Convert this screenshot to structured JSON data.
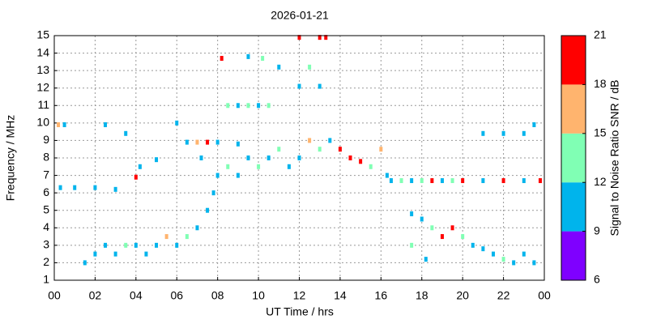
{
  "chart_data": {
    "type": "scatter",
    "title": "2026-01-21",
    "xlabel": "UT Time / hrs",
    "ylabel": "Frequency / MHz",
    "colorbar_label": "Signal to Noise Ratio SNR / dB",
    "xlim": [
      0,
      24
    ],
    "xticks": [
      {
        "value": 0,
        "label": "00"
      },
      {
        "value": 2,
        "label": "02"
      },
      {
        "value": 4,
        "label": "04"
      },
      {
        "value": 6,
        "label": "06"
      },
      {
        "value": 8,
        "label": "08"
      },
      10,
      12,
      14,
      16,
      18,
      20,
      22,
      {
        "value": 24,
        "label": "00"
      }
    ],
    "ylim": [
      1,
      15
    ],
    "yticks": [
      1,
      2,
      3,
      4,
      5,
      6,
      7,
      8,
      9,
      10,
      11,
      12,
      13,
      14,
      15
    ],
    "clim": [
      6,
      21
    ],
    "cticks": [
      6,
      9,
      12,
      15,
      18,
      21
    ],
    "colors": [
      "#7f00ff",
      "#00b4ec",
      "#80ffb4",
      "#ffb46e",
      "#ff0000"
    ],
    "grid": true,
    "x": [
      1.5,
      2,
      2.5,
      3,
      3.5,
      4,
      4.5,
      5,
      5.5,
      6,
      6.5,
      7,
      7.5,
      7.8,
      0.3,
      1,
      2,
      3,
      4,
      0.2,
      0.5,
      2.5,
      8,
      8.5,
      9,
      9.5,
      10,
      10.5,
      11,
      11.5,
      12,
      12.5,
      13,
      13.5,
      14,
      14.5,
      15,
      15.5,
      16,
      16.3,
      6.5,
      7,
      7.5,
      8,
      9,
      8.5,
      9,
      9.5,
      10,
      10.5,
      8.2,
      9.5,
      10.2,
      11,
      12,
      13,
      12.5,
      12,
      13,
      13.3,
      16.5,
      17,
      17.5,
      18,
      18.5,
      19,
      19.5,
      20,
      21,
      22,
      23,
      23.8,
      17.5,
      18,
      18.5,
      19,
      19.5,
      20,
      20.5,
      21,
      21.5,
      22,
      22.5,
      23,
      23.5,
      17.5,
      18.2,
      21,
      22,
      23,
      23.5,
      3.5,
      5,
      6,
      7.2,
      4.2
    ],
    "y": [
      2,
      2.5,
      3,
      2.5,
      3,
      3,
      2.5,
      3,
      3.5,
      3,
      3.5,
      4,
      5,
      6,
      6.3,
      6.3,
      6.3,
      6.2,
      6.9,
      9.9,
      9.9,
      9.9,
      7,
      7.5,
      7,
      8,
      7.5,
      8,
      8.5,
      7.5,
      8,
      9,
      8.5,
      9,
      8.5,
      8,
      7.8,
      7.5,
      8.5,
      7,
      8.9,
      8.9,
      8.9,
      8.9,
      8.8,
      11,
      11,
      11,
      11,
      11,
      13.7,
      13.8,
      13.7,
      13.2,
      12.1,
      12.1,
      13.2,
      14.9,
      14.9,
      14.9,
      6.7,
      6.7,
      6.7,
      6.7,
      6.7,
      6.7,
      6.7,
      6.7,
      6.7,
      6.7,
      6.7,
      6.7,
      4.8,
      4.5,
      4,
      3.5,
      4,
      3.5,
      3,
      2.8,
      2.5,
      2.2,
      2,
      2.5,
      2,
      3,
      2.2,
      9.4,
      9.4,
      9.4,
      9.9,
      9.4,
      7.9,
      10,
      8,
      7.5
    ],
    "snr": [
      10,
      10,
      11,
      10,
      12,
      10,
      11,
      10,
      16,
      11,
      12,
      10,
      11,
      10,
      10,
      10,
      10,
      10,
      20,
      16,
      10,
      10,
      11,
      12,
      10,
      11,
      13,
      10,
      12,
      10,
      11,
      16,
      12,
      10,
      20,
      19,
      20,
      12,
      16,
      10,
      10,
      17,
      20,
      10,
      10,
      12,
      10,
      13,
      10,
      12,
      20,
      10,
      12,
      10,
      10,
      10,
      12,
      20,
      20,
      20,
      10,
      12,
      10,
      12,
      20,
      10,
      12,
      20,
      10,
      20,
      10,
      20,
      10,
      11,
      12,
      18,
      20,
      12,
      10,
      11,
      10,
      12,
      10,
      11,
      10,
      12,
      10,
      10,
      10,
      10,
      10,
      10,
      10,
      10,
      10,
      10
    ]
  }
}
